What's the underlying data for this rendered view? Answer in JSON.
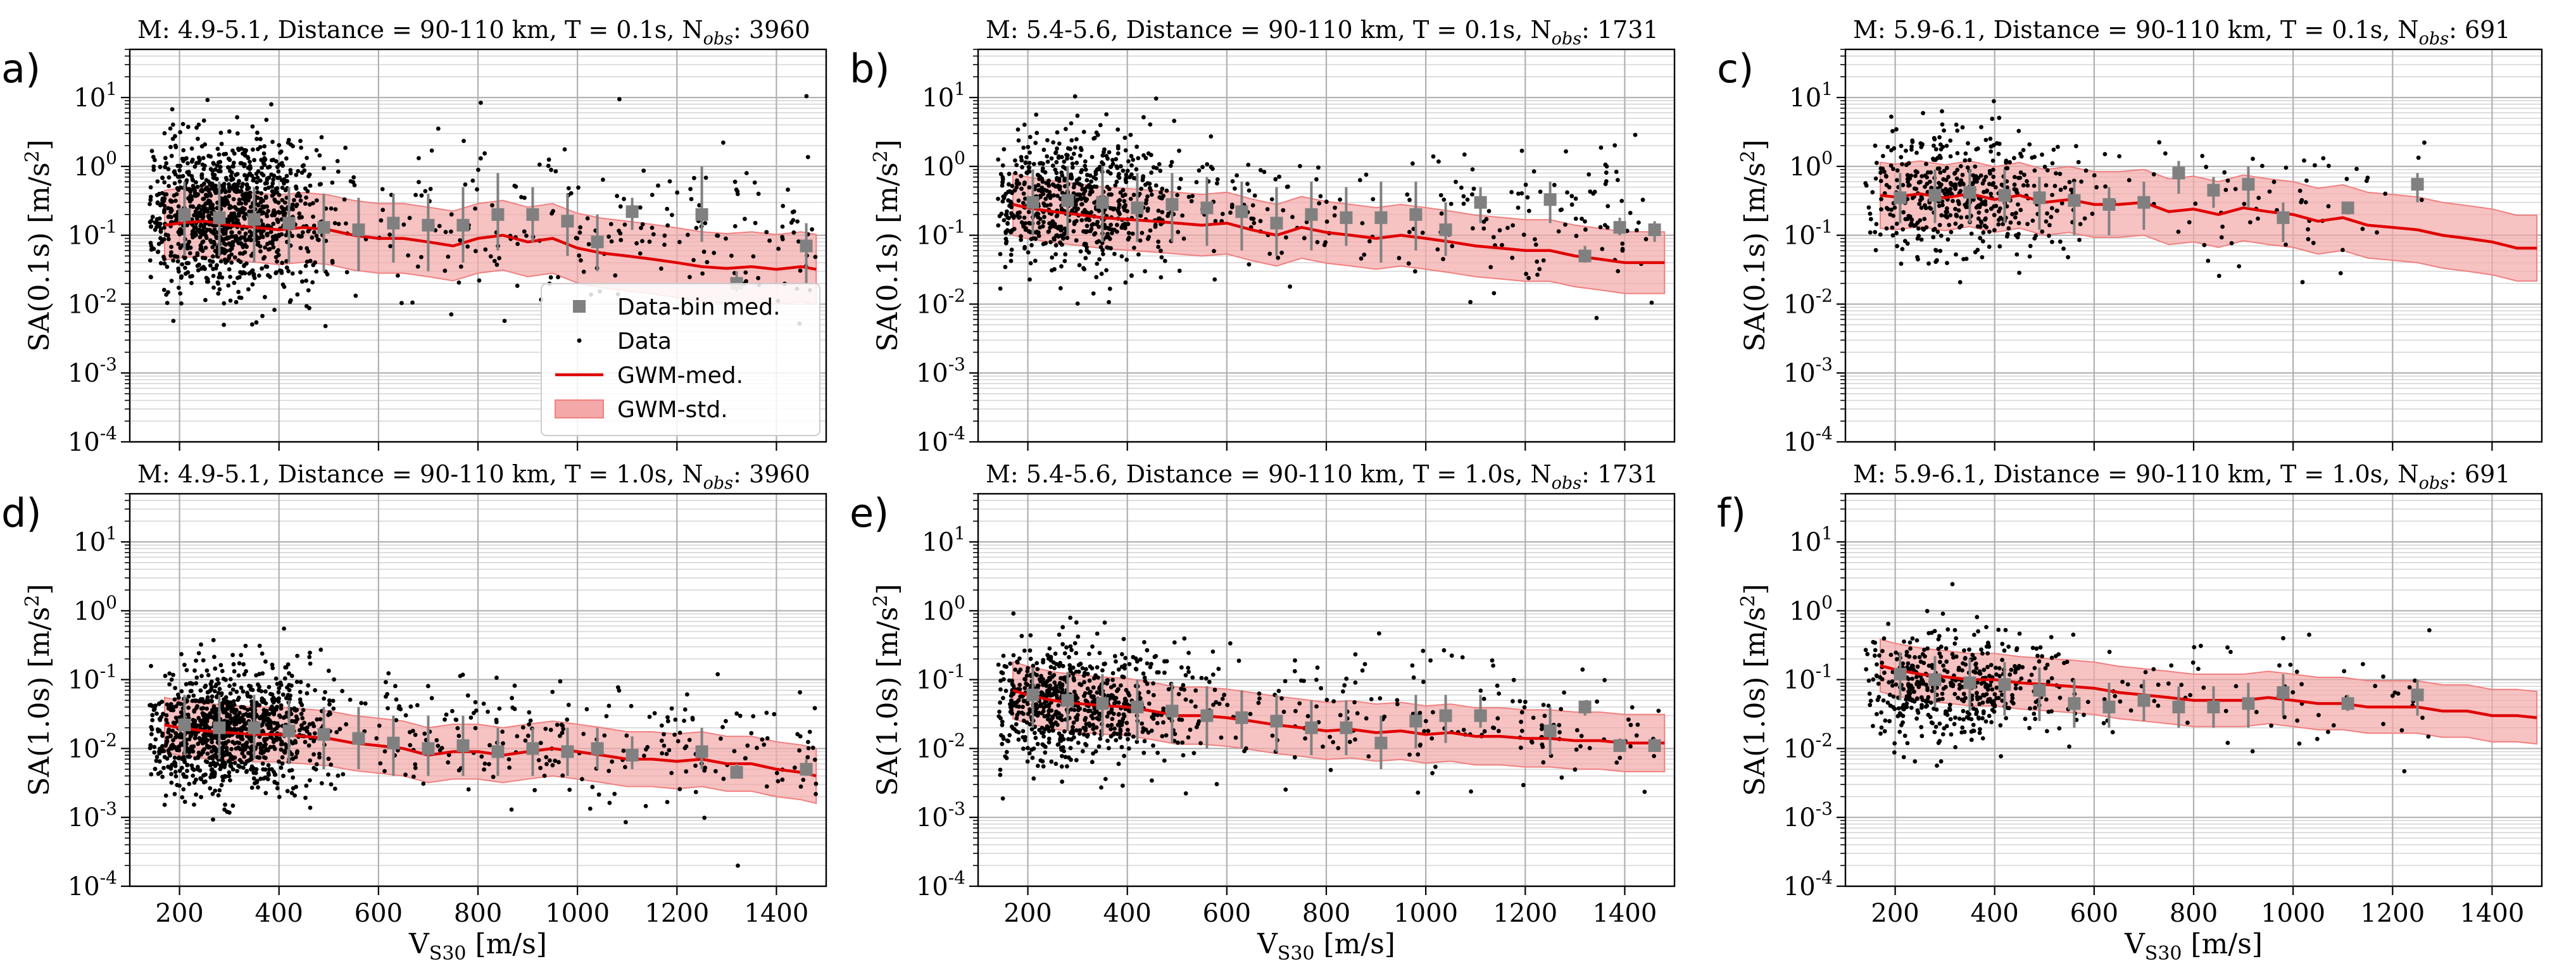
{
  "figure": {
    "x_label_main": "V",
    "x_label_sub": "S30",
    "x_label_unit": " [m/s]",
    "gridlines": true
  },
  "legend": {
    "location": "lower-right",
    "entries": [
      {
        "label": "Data-bin med.",
        "kind": "square"
      },
      {
        "label": "Data",
        "kind": "dot"
      },
      {
        "label": "GWM-med.",
        "kind": "line"
      },
      {
        "label": "GWM-std.",
        "kind": "band"
      }
    ]
  },
  "colors": {
    "data_points": "#000000",
    "bin_median": "#808080",
    "gwm_median": "#e00000",
    "gwm_std_fill": "#f4a8a8",
    "gwm_std_edge": "#f08080",
    "grid": "#bdbdbd"
  },
  "chart_data": [
    {
      "type": "scatter",
      "panel": "a)",
      "sa_label": "SA(0.1s)",
      "sa_unit": " [m/s",
      "sa_unit_sup": "2",
      "sa_unit_end": "]",
      "title_pre": "M: 4.9-5.1,  Distance = 90-110 km, T = 0.1s, N",
      "title_sub": "obs",
      "title_post": ": 3960",
      "n_obs": 3960,
      "xlim": [
        100,
        1500
      ],
      "ylim": [
        0.0001,
        50
      ],
      "x_ticks": [
        200,
        400,
        600,
        800,
        1000,
        1200,
        1400
      ],
      "y_exponents": [
        -4,
        -3,
        -2,
        -1,
        0,
        1
      ],
      "scatter": {
        "seed": 11,
        "n_render": 1300,
        "x_center": 300,
        "x_spread": 100,
        "x_max": 1480,
        "y_center": 0.2,
        "y_sigma": 0.55,
        "sparse_x_start": 600,
        "sparse_frac": 0.17
      },
      "gwm_x": [
        170,
        200,
        250,
        300,
        350,
        400,
        450,
        500,
        550,
        600,
        650,
        700,
        750,
        800,
        850,
        900,
        950,
        1000,
        1050,
        1100,
        1150,
        1200,
        1250,
        1300,
        1350,
        1400,
        1450,
        1480
      ],
      "gwm_median": [
        0.14,
        0.15,
        0.16,
        0.14,
        0.13,
        0.12,
        0.13,
        0.12,
        0.1,
        0.09,
        0.09,
        0.08,
        0.07,
        0.09,
        0.1,
        0.08,
        0.09,
        0.065,
        0.055,
        0.05,
        0.045,
        0.04,
        0.035,
        0.033,
        0.035,
        0.032,
        0.035,
        0.032
      ],
      "gwm_std_factor": 3.2,
      "bin_x": [
        210,
        280,
        350,
        420,
        490,
        560,
        630,
        700,
        770,
        840,
        910,
        980,
        1040,
        1110,
        1250,
        1320,
        1460
      ],
      "bin_med": [
        0.2,
        0.18,
        0.17,
        0.15,
        0.13,
        0.12,
        0.15,
        0.14,
        0.14,
        0.2,
        0.2,
        0.16,
        0.08,
        0.22,
        0.2,
        0.02,
        0.07
      ],
      "bin_low": [
        0.05,
        0.05,
        0.04,
        0.04,
        0.03,
        0.03,
        0.04,
        0.03,
        0.04,
        0.06,
        0.08,
        0.05,
        0.03,
        0.12,
        0.08,
        0.015,
        0.02
      ],
      "bin_high": [
        0.6,
        0.6,
        0.5,
        0.5,
        0.4,
        0.35,
        0.4,
        0.4,
        0.5,
        0.8,
        0.5,
        0.4,
        0.2,
        0.35,
        1.0,
        0.03,
        0.15
      ]
    },
    {
      "type": "scatter",
      "panel": "b)",
      "sa_label": "SA(0.1s)",
      "sa_unit": " [m/s",
      "sa_unit_sup": "2",
      "sa_unit_end": "]",
      "title_pre": "M: 5.4-5.6,  Distance = 90-110 km, T = 0.1s, N",
      "title_sub": "obs",
      "title_post": ": 1731",
      "n_obs": 1731,
      "xlim": [
        100,
        1500
      ],
      "ylim": [
        0.0001,
        50
      ],
      "x_ticks": [
        200,
        400,
        600,
        800,
        1000,
        1200,
        1400
      ],
      "y_exponents": [
        -4,
        -3,
        -2,
        -1,
        0,
        1
      ],
      "scatter": {
        "seed": 23,
        "n_render": 900,
        "x_center": 300,
        "x_spread": 110,
        "x_max": 1470,
        "y_center": 0.3,
        "y_sigma": 0.5,
        "sparse_x_start": 550,
        "sparse_frac": 0.18
      },
      "gwm_x": [
        170,
        200,
        250,
        300,
        350,
        400,
        450,
        500,
        550,
        600,
        650,
        700,
        750,
        800,
        850,
        900,
        950,
        1000,
        1050,
        1100,
        1150,
        1200,
        1250,
        1300,
        1350,
        1400,
        1450,
        1480
      ],
      "gwm_median": [
        0.28,
        0.25,
        0.22,
        0.2,
        0.18,
        0.17,
        0.16,
        0.15,
        0.14,
        0.15,
        0.12,
        0.1,
        0.13,
        0.11,
        0.1,
        0.09,
        0.1,
        0.09,
        0.08,
        0.07,
        0.065,
        0.06,
        0.06,
        0.05,
        0.045,
        0.04,
        0.04,
        0.04
      ],
      "gwm_std_factor": 2.8,
      "bin_x": [
        210,
        280,
        350,
        420,
        490,
        560,
        630,
        700,
        770,
        840,
        910,
        980,
        1040,
        1110,
        1250,
        1320,
        1390,
        1460
      ],
      "bin_med": [
        0.3,
        0.32,
        0.3,
        0.25,
        0.28,
        0.25,
        0.22,
        0.15,
        0.2,
        0.18,
        0.18,
        0.2,
        0.12,
        0.3,
        0.33,
        0.05,
        0.13,
        0.12
      ],
      "bin_low": [
        0.1,
        0.1,
        0.08,
        0.08,
        0.08,
        0.07,
        0.06,
        0.05,
        0.06,
        0.07,
        0.04,
        0.06,
        0.05,
        0.15,
        0.15,
        0.04,
        0.1,
        0.08
      ],
      "bin_high": [
        0.9,
        1.0,
        1.0,
        0.8,
        0.8,
        0.7,
        0.6,
        0.5,
        0.6,
        0.5,
        0.6,
        0.6,
        0.3,
        0.5,
        0.6,
        0.07,
        0.18,
        0.16
      ]
    },
    {
      "type": "scatter",
      "panel": "c)",
      "sa_label": "SA(0.1s)",
      "sa_unit": " [m/s",
      "sa_unit_sup": "2",
      "sa_unit_end": "]",
      "title_pre": "M: 5.9-6.1,  Distance = 90-110 km, T = 0.1s, N",
      "title_sub": "obs",
      "title_post": ": 691",
      "n_obs": 691,
      "xlim": [
        100,
        1500
      ],
      "ylim": [
        0.0001,
        50
      ],
      "x_ticks": [
        200,
        400,
        600,
        800,
        1000,
        1200,
        1400
      ],
      "y_exponents": [
        -4,
        -3,
        -2,
        -1,
        0,
        1
      ],
      "scatter": {
        "seed": 37,
        "n_render": 560,
        "x_center": 330,
        "x_spread": 120,
        "x_max": 1280,
        "y_center": 0.38,
        "y_sigma": 0.45,
        "sparse_x_start": 550,
        "sparse_frac": 0.12
      },
      "gwm_x": [
        170,
        200,
        250,
        300,
        350,
        400,
        450,
        500,
        550,
        600,
        650,
        700,
        750,
        800,
        850,
        900,
        950,
        1000,
        1050,
        1100,
        1150,
        1200,
        1250,
        1300,
        1350,
        1400,
        1450,
        1490
      ],
      "gwm_median": [
        0.38,
        0.36,
        0.4,
        0.35,
        0.4,
        0.33,
        0.38,
        0.3,
        0.33,
        0.28,
        0.28,
        0.3,
        0.22,
        0.24,
        0.2,
        0.25,
        0.22,
        0.2,
        0.16,
        0.18,
        0.14,
        0.13,
        0.12,
        0.1,
        0.09,
        0.08,
        0.065,
        0.065
      ],
      "gwm_std_factor": 3.0,
      "bin_x": [
        210,
        280,
        350,
        420,
        490,
        560,
        630,
        700,
        770,
        840,
        910,
        980,
        1110,
        1250
      ],
      "bin_med": [
        0.35,
        0.38,
        0.42,
        0.38,
        0.35,
        0.32,
        0.28,
        0.3,
        0.8,
        0.45,
        0.55,
        0.18,
        0.25,
        0.55
      ],
      "bin_low": [
        0.15,
        0.15,
        0.15,
        0.15,
        0.12,
        0.1,
        0.1,
        0.12,
        0.4,
        0.25,
        0.25,
        0.08,
        0.2,
        0.3
      ],
      "bin_high": [
        0.8,
        0.9,
        0.9,
        0.9,
        0.7,
        0.6,
        0.5,
        0.6,
        1.2,
        0.7,
        1.0,
        0.3,
        0.3,
        0.8
      ]
    },
    {
      "type": "scatter",
      "panel": "d)",
      "sa_label": "SA(1.0s)",
      "sa_unit": " [m/s",
      "sa_unit_sup": "2",
      "sa_unit_end": "]",
      "title_pre": "M: 4.9-5.1,  Distance = 90-110 km, T = 1.0s, N",
      "title_sub": "obs",
      "title_post": ": 3960",
      "n_obs": 3960,
      "xlim": [
        100,
        1500
      ],
      "ylim": [
        0.0001,
        50
      ],
      "x_ticks": [
        200,
        400,
        600,
        800,
        1000,
        1200,
        1400
      ],
      "y_exponents": [
        -4,
        -3,
        -2,
        -1,
        0,
        1
      ],
      "scatter": {
        "seed": 53,
        "n_render": 1300,
        "x_center": 300,
        "x_spread": 100,
        "x_max": 1480,
        "y_center": 0.018,
        "y_sigma": 0.45,
        "sparse_x_start": 600,
        "sparse_frac": 0.17
      },
      "gwm_x": [
        170,
        200,
        250,
        300,
        350,
        400,
        450,
        500,
        550,
        600,
        650,
        700,
        750,
        800,
        850,
        900,
        950,
        1000,
        1050,
        1100,
        1150,
        1200,
        1250,
        1300,
        1350,
        1400,
        1450,
        1480
      ],
      "gwm_median": [
        0.022,
        0.02,
        0.018,
        0.017,
        0.016,
        0.016,
        0.015,
        0.014,
        0.012,
        0.011,
        0.01,
        0.008,
        0.009,
        0.009,
        0.008,
        0.009,
        0.01,
        0.009,
        0.008,
        0.007,
        0.007,
        0.0065,
        0.007,
        0.006,
        0.006,
        0.005,
        0.0045,
        0.004
      ],
      "gwm_std_factor": 2.5,
      "bin_x": [
        210,
        280,
        350,
        420,
        490,
        560,
        630,
        700,
        770,
        840,
        910,
        980,
        1040,
        1110,
        1250,
        1320,
        1460
      ],
      "bin_med": [
        0.022,
        0.02,
        0.02,
        0.018,
        0.016,
        0.014,
        0.012,
        0.01,
        0.011,
        0.009,
        0.01,
        0.009,
        0.01,
        0.008,
        0.009,
        0.0045,
        0.005
      ],
      "bin_low": [
        0.008,
        0.007,
        0.007,
        0.006,
        0.005,
        0.005,
        0.004,
        0.004,
        0.004,
        0.004,
        0.004,
        0.004,
        0.005,
        0.005,
        0.005,
        0.004,
        0.004
      ],
      "bin_high": [
        0.06,
        0.06,
        0.06,
        0.05,
        0.04,
        0.04,
        0.03,
        0.03,
        0.03,
        0.02,
        0.02,
        0.02,
        0.02,
        0.015,
        0.02,
        0.006,
        0.007
      ]
    },
    {
      "type": "scatter",
      "panel": "e)",
      "sa_label": "SA(1.0s)",
      "sa_unit": " [m/s",
      "sa_unit_sup": "2",
      "sa_unit_end": "]",
      "title_pre": "M: 5.4-5.6,  Distance = 90-110 km, T = 1.0s, N",
      "title_sub": "obs",
      "title_post": ": 1731",
      "n_obs": 1731,
      "xlim": [
        100,
        1500
      ],
      "ylim": [
        0.0001,
        50
      ],
      "x_ticks": [
        200,
        400,
        600,
        800,
        1000,
        1200,
        1400
      ],
      "y_exponents": [
        -4,
        -3,
        -2,
        -1,
        0,
        1
      ],
      "scatter": {
        "seed": 71,
        "n_render": 900,
        "x_center": 290,
        "x_spread": 110,
        "x_max": 1470,
        "y_center": 0.045,
        "y_sigma": 0.45,
        "sparse_x_start": 550,
        "sparse_frac": 0.18
      },
      "gwm_x": [
        170,
        200,
        250,
        300,
        350,
        400,
        450,
        500,
        550,
        600,
        650,
        700,
        750,
        800,
        850,
        900,
        950,
        1000,
        1050,
        1100,
        1150,
        1200,
        1250,
        1300,
        1350,
        1400,
        1450,
        1480
      ],
      "gwm_median": [
        0.07,
        0.06,
        0.05,
        0.045,
        0.042,
        0.04,
        0.035,
        0.03,
        0.03,
        0.028,
        0.025,
        0.022,
        0.02,
        0.018,
        0.019,
        0.017,
        0.018,
        0.016,
        0.017,
        0.015,
        0.015,
        0.014,
        0.014,
        0.013,
        0.013,
        0.012,
        0.012,
        0.012
      ],
      "gwm_std_factor": 2.6,
      "bin_x": [
        210,
        280,
        350,
        420,
        490,
        560,
        630,
        700,
        770,
        840,
        910,
        980,
        1040,
        1110,
        1250,
        1320,
        1390,
        1460
      ],
      "bin_med": [
        0.06,
        0.05,
        0.045,
        0.04,
        0.035,
        0.03,
        0.028,
        0.025,
        0.02,
        0.02,
        0.012,
        0.025,
        0.03,
        0.03,
        0.018,
        0.04,
        0.011,
        0.011
      ],
      "bin_low": [
        0.02,
        0.018,
        0.015,
        0.013,
        0.012,
        0.01,
        0.01,
        0.009,
        0.008,
        0.008,
        0.005,
        0.01,
        0.012,
        0.02,
        0.008,
        0.03,
        0.009,
        0.009
      ],
      "bin_high": [
        0.15,
        0.13,
        0.12,
        0.1,
        0.09,
        0.08,
        0.07,
        0.06,
        0.05,
        0.05,
        0.03,
        0.06,
        0.06,
        0.06,
        0.04,
        0.05,
        0.014,
        0.014
      ]
    },
    {
      "type": "scatter",
      "panel": "f)",
      "sa_label": "SA(1.0s)",
      "sa_unit": " [m/s",
      "sa_unit_sup": "2",
      "sa_unit_end": "]",
      "title_pre": "M: 5.9-6.1,  Distance = 90-110 km, T = 1.0s, N",
      "title_sub": "obs",
      "title_post": ": 691",
      "n_obs": 691,
      "xlim": [
        100,
        1500
      ],
      "ylim": [
        0.0001,
        50
      ],
      "x_ticks": [
        200,
        400,
        600,
        800,
        1000,
        1200,
        1400
      ],
      "y_exponents": [
        -4,
        -3,
        -2,
        -1,
        0,
        1
      ],
      "scatter": {
        "seed": 89,
        "n_render": 560,
        "x_center": 320,
        "x_spread": 120,
        "x_max": 1280,
        "y_center": 0.08,
        "y_sigma": 0.4,
        "sparse_x_start": 550,
        "sparse_frac": 0.12
      },
      "gwm_x": [
        170,
        200,
        250,
        300,
        350,
        400,
        450,
        500,
        550,
        600,
        650,
        700,
        750,
        800,
        850,
        900,
        950,
        1000,
        1050,
        1100,
        1150,
        1200,
        1250,
        1300,
        1350,
        1400,
        1450,
        1490
      ],
      "gwm_median": [
        0.16,
        0.14,
        0.12,
        0.11,
        0.1,
        0.1,
        0.09,
        0.085,
        0.08,
        0.075,
        0.065,
        0.06,
        0.055,
        0.05,
        0.05,
        0.05,
        0.055,
        0.05,
        0.045,
        0.045,
        0.04,
        0.04,
        0.04,
        0.035,
        0.035,
        0.03,
        0.03,
        0.028
      ],
      "gwm_std_factor": 2.4,
      "bin_x": [
        210,
        280,
        350,
        420,
        490,
        560,
        630,
        700,
        770,
        840,
        910,
        980,
        1110,
        1250
      ],
      "bin_med": [
        0.12,
        0.1,
        0.09,
        0.085,
        0.07,
        0.045,
        0.04,
        0.05,
        0.04,
        0.04,
        0.045,
        0.065,
        0.045,
        0.06
      ],
      "bin_low": [
        0.05,
        0.04,
        0.035,
        0.03,
        0.025,
        0.02,
        0.02,
        0.025,
        0.02,
        0.02,
        0.02,
        0.03,
        0.035,
        0.03
      ],
      "bin_high": [
        0.25,
        0.22,
        0.2,
        0.18,
        0.15,
        0.1,
        0.09,
        0.1,
        0.08,
        0.08,
        0.09,
        0.12,
        0.06,
        0.1
      ]
    }
  ]
}
